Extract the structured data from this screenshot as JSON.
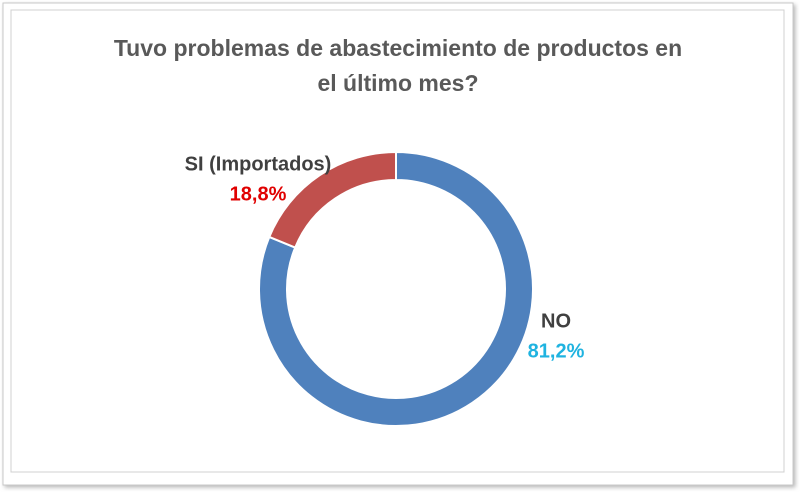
{
  "chart_data": {
    "type": "donut",
    "title": "Tuvo problemas de abastecimiento de productos en el último mes?",
    "categories": [
      "NO",
      "SI (Importados)"
    ],
    "values": [
      81.2,
      18.8
    ],
    "value_labels": [
      "81,2%",
      "18,8%"
    ],
    "colors": [
      "#4f81bd",
      "#c0504d"
    ],
    "value_label_colors": [
      "#1fb3e0",
      "#e00000"
    ]
  }
}
